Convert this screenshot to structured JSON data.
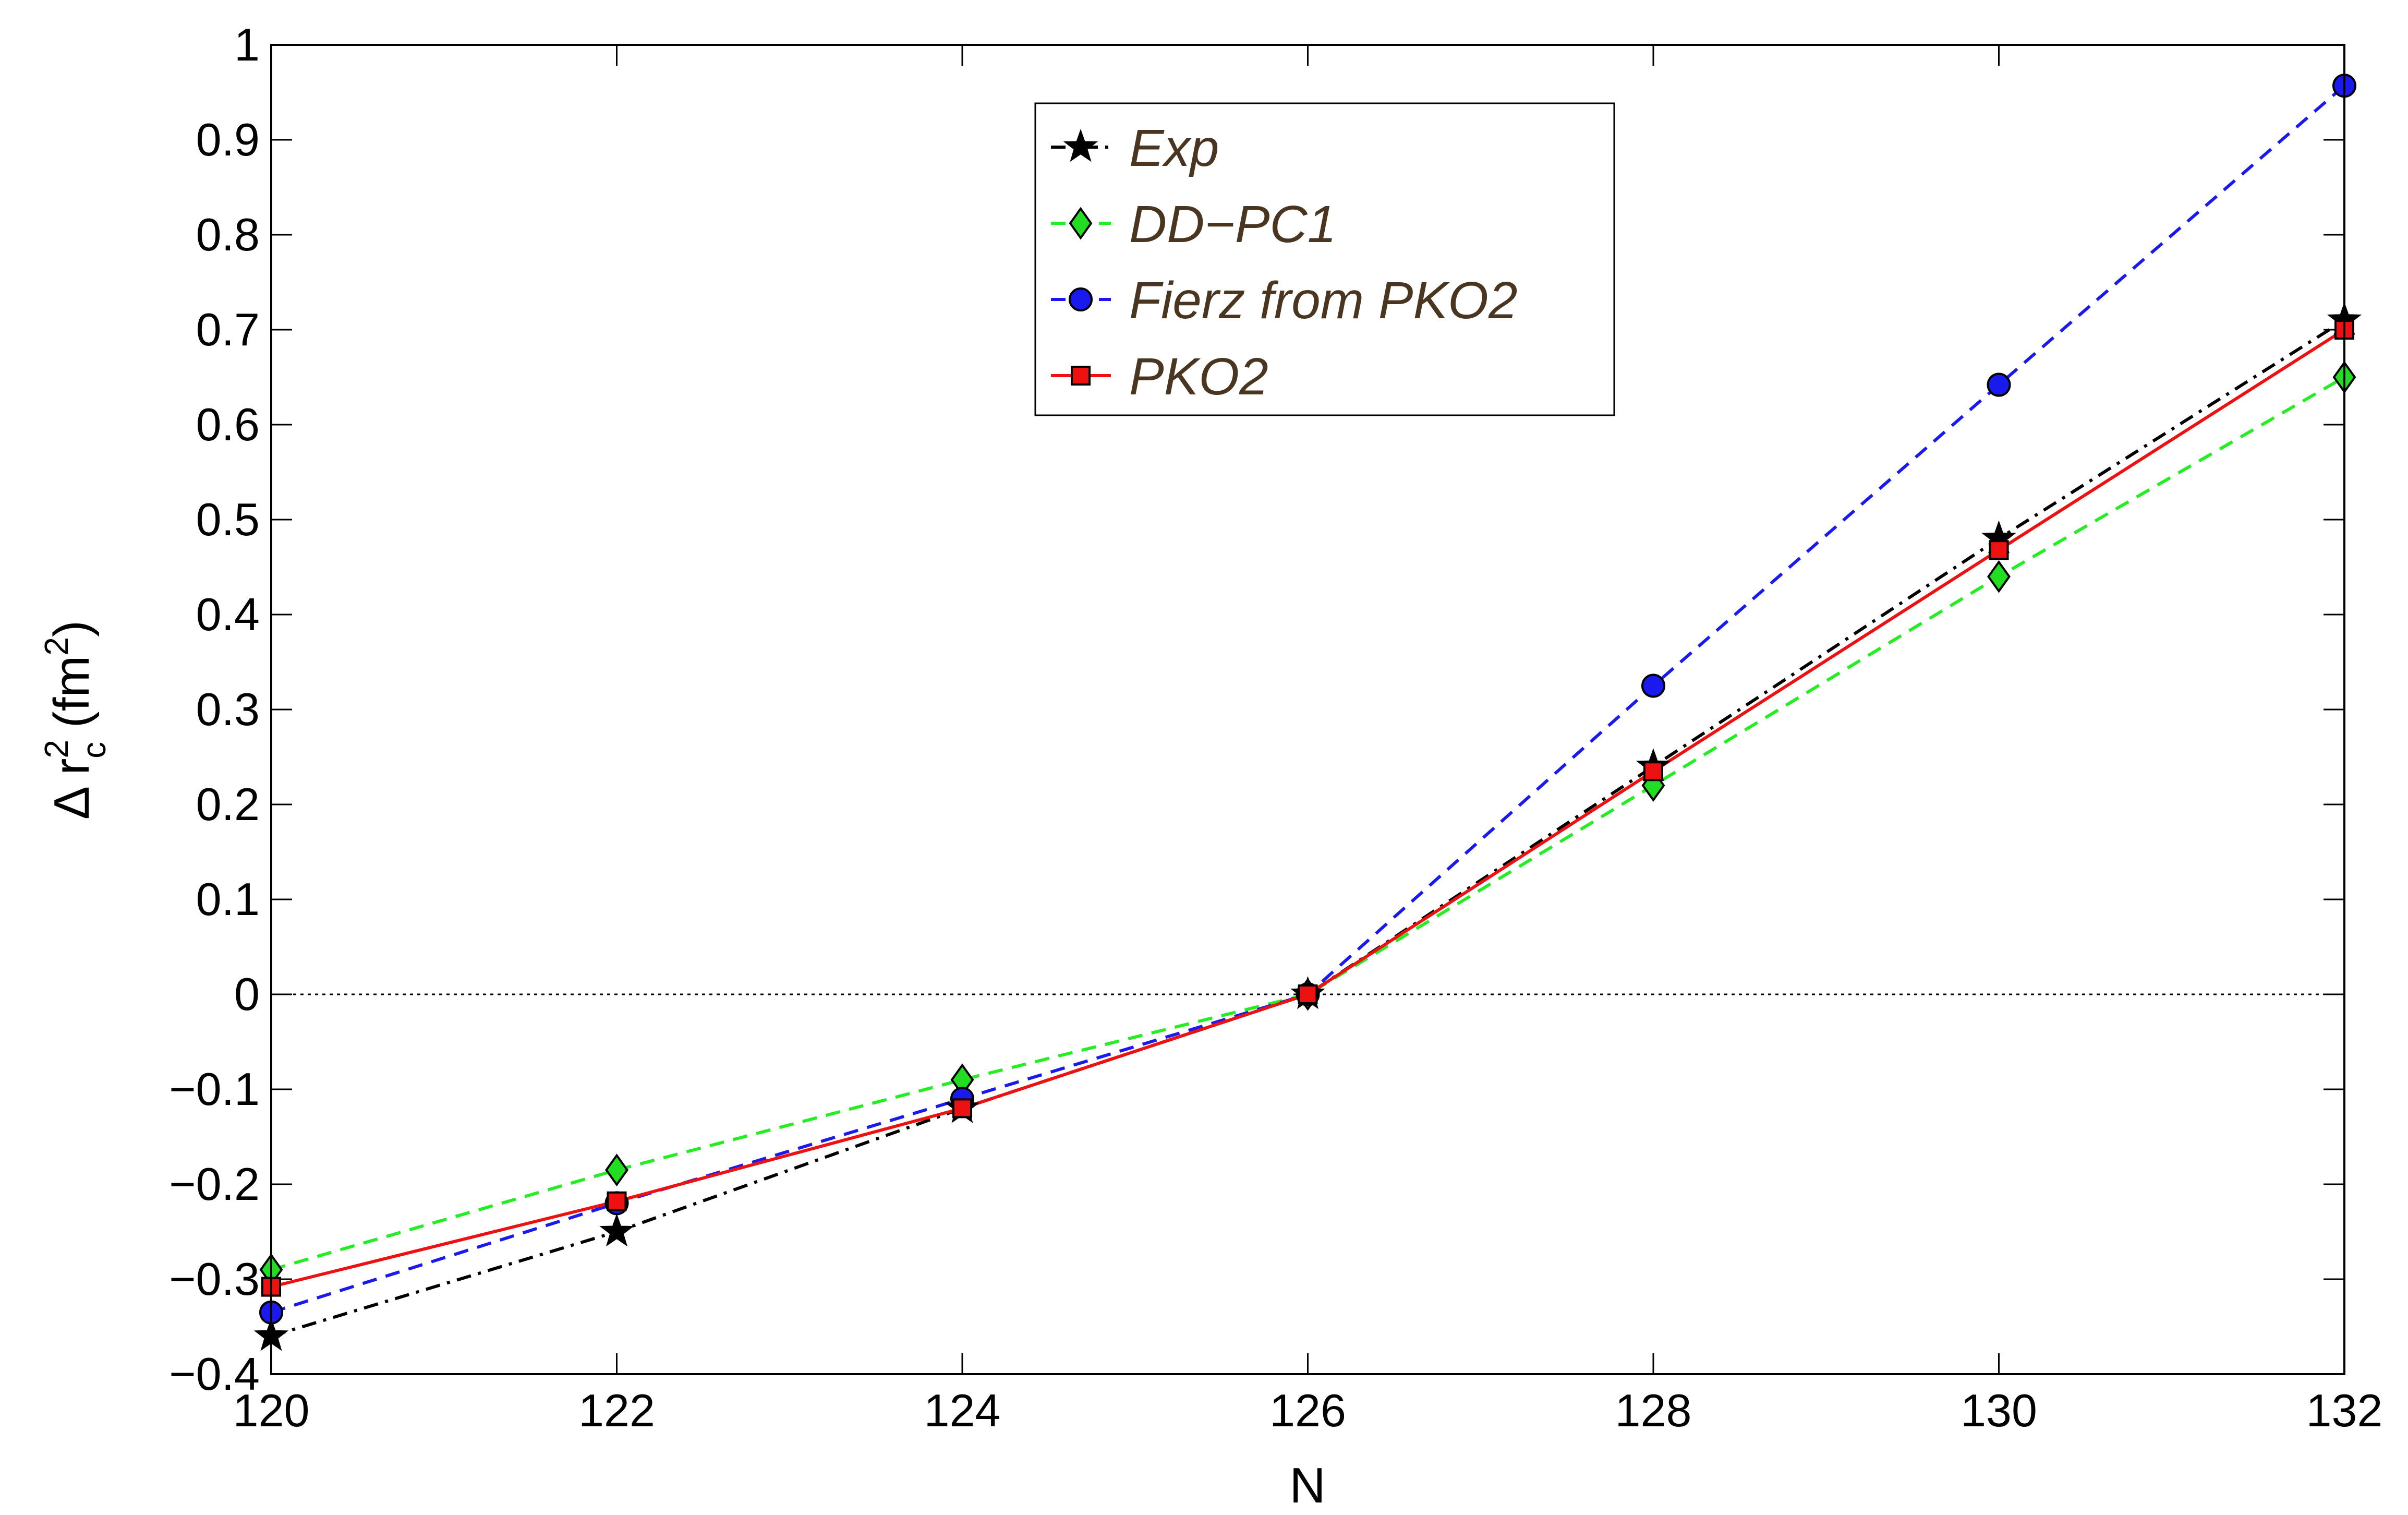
{
  "chart_data": {
    "type": "line",
    "xlabel": "N",
    "ylabel": "Δ r_c^2 (fm^2)",
    "xlim": [
      120,
      132
    ],
    "ylim": [
      -0.4,
      1.0
    ],
    "x_ticks": [
      "120",
      "122",
      "124",
      "126",
      "128",
      "130",
      "132"
    ],
    "y_ticks": [
      "−0.4",
      "−0.3",
      "−0.2",
      "−0.1",
      "0",
      "0.1",
      "0.2",
      "0.3",
      "0.4",
      "0.5",
      "0.6",
      "0.7",
      "0.8",
      "0.9",
      "1"
    ],
    "grid": false,
    "zero_reference_line": true,
    "legend_position": "top-center",
    "x": [
      120,
      122,
      124,
      126,
      128,
      130,
      132
    ],
    "series": [
      {
        "name": "Exp",
        "values": [
          -0.36,
          -0.25,
          -0.12,
          0.0,
          0.24,
          0.48,
          0.71
        ],
        "line_color": "#000000",
        "line_style": "dashdot",
        "marker": "star",
        "marker_fill": "#000000"
      },
      {
        "name": "DD−PC1",
        "values": [
          -0.29,
          -0.185,
          -0.09,
          0.0,
          0.22,
          0.44,
          0.65
        ],
        "line_color": "#22ee22",
        "line_style": "dashed",
        "marker": "diamond",
        "marker_fill": "#22dd22"
      },
      {
        "name": "Fierz from PKO2",
        "values": [
          -0.335,
          -0.22,
          -0.11,
          0.0,
          0.325,
          0.642,
          0.957
        ],
        "line_color": "#1a1aee",
        "line_style": "dashed",
        "marker": "circle",
        "marker_fill": "#1a1aee"
      },
      {
        "name": "PKO2",
        "values": [
          -0.308,
          -0.218,
          -0.12,
          0.0,
          0.235,
          0.468,
          0.7
        ],
        "line_color": "#ee1111",
        "line_style": "solid",
        "marker": "square",
        "marker_fill": "#ee1111"
      }
    ]
  }
}
